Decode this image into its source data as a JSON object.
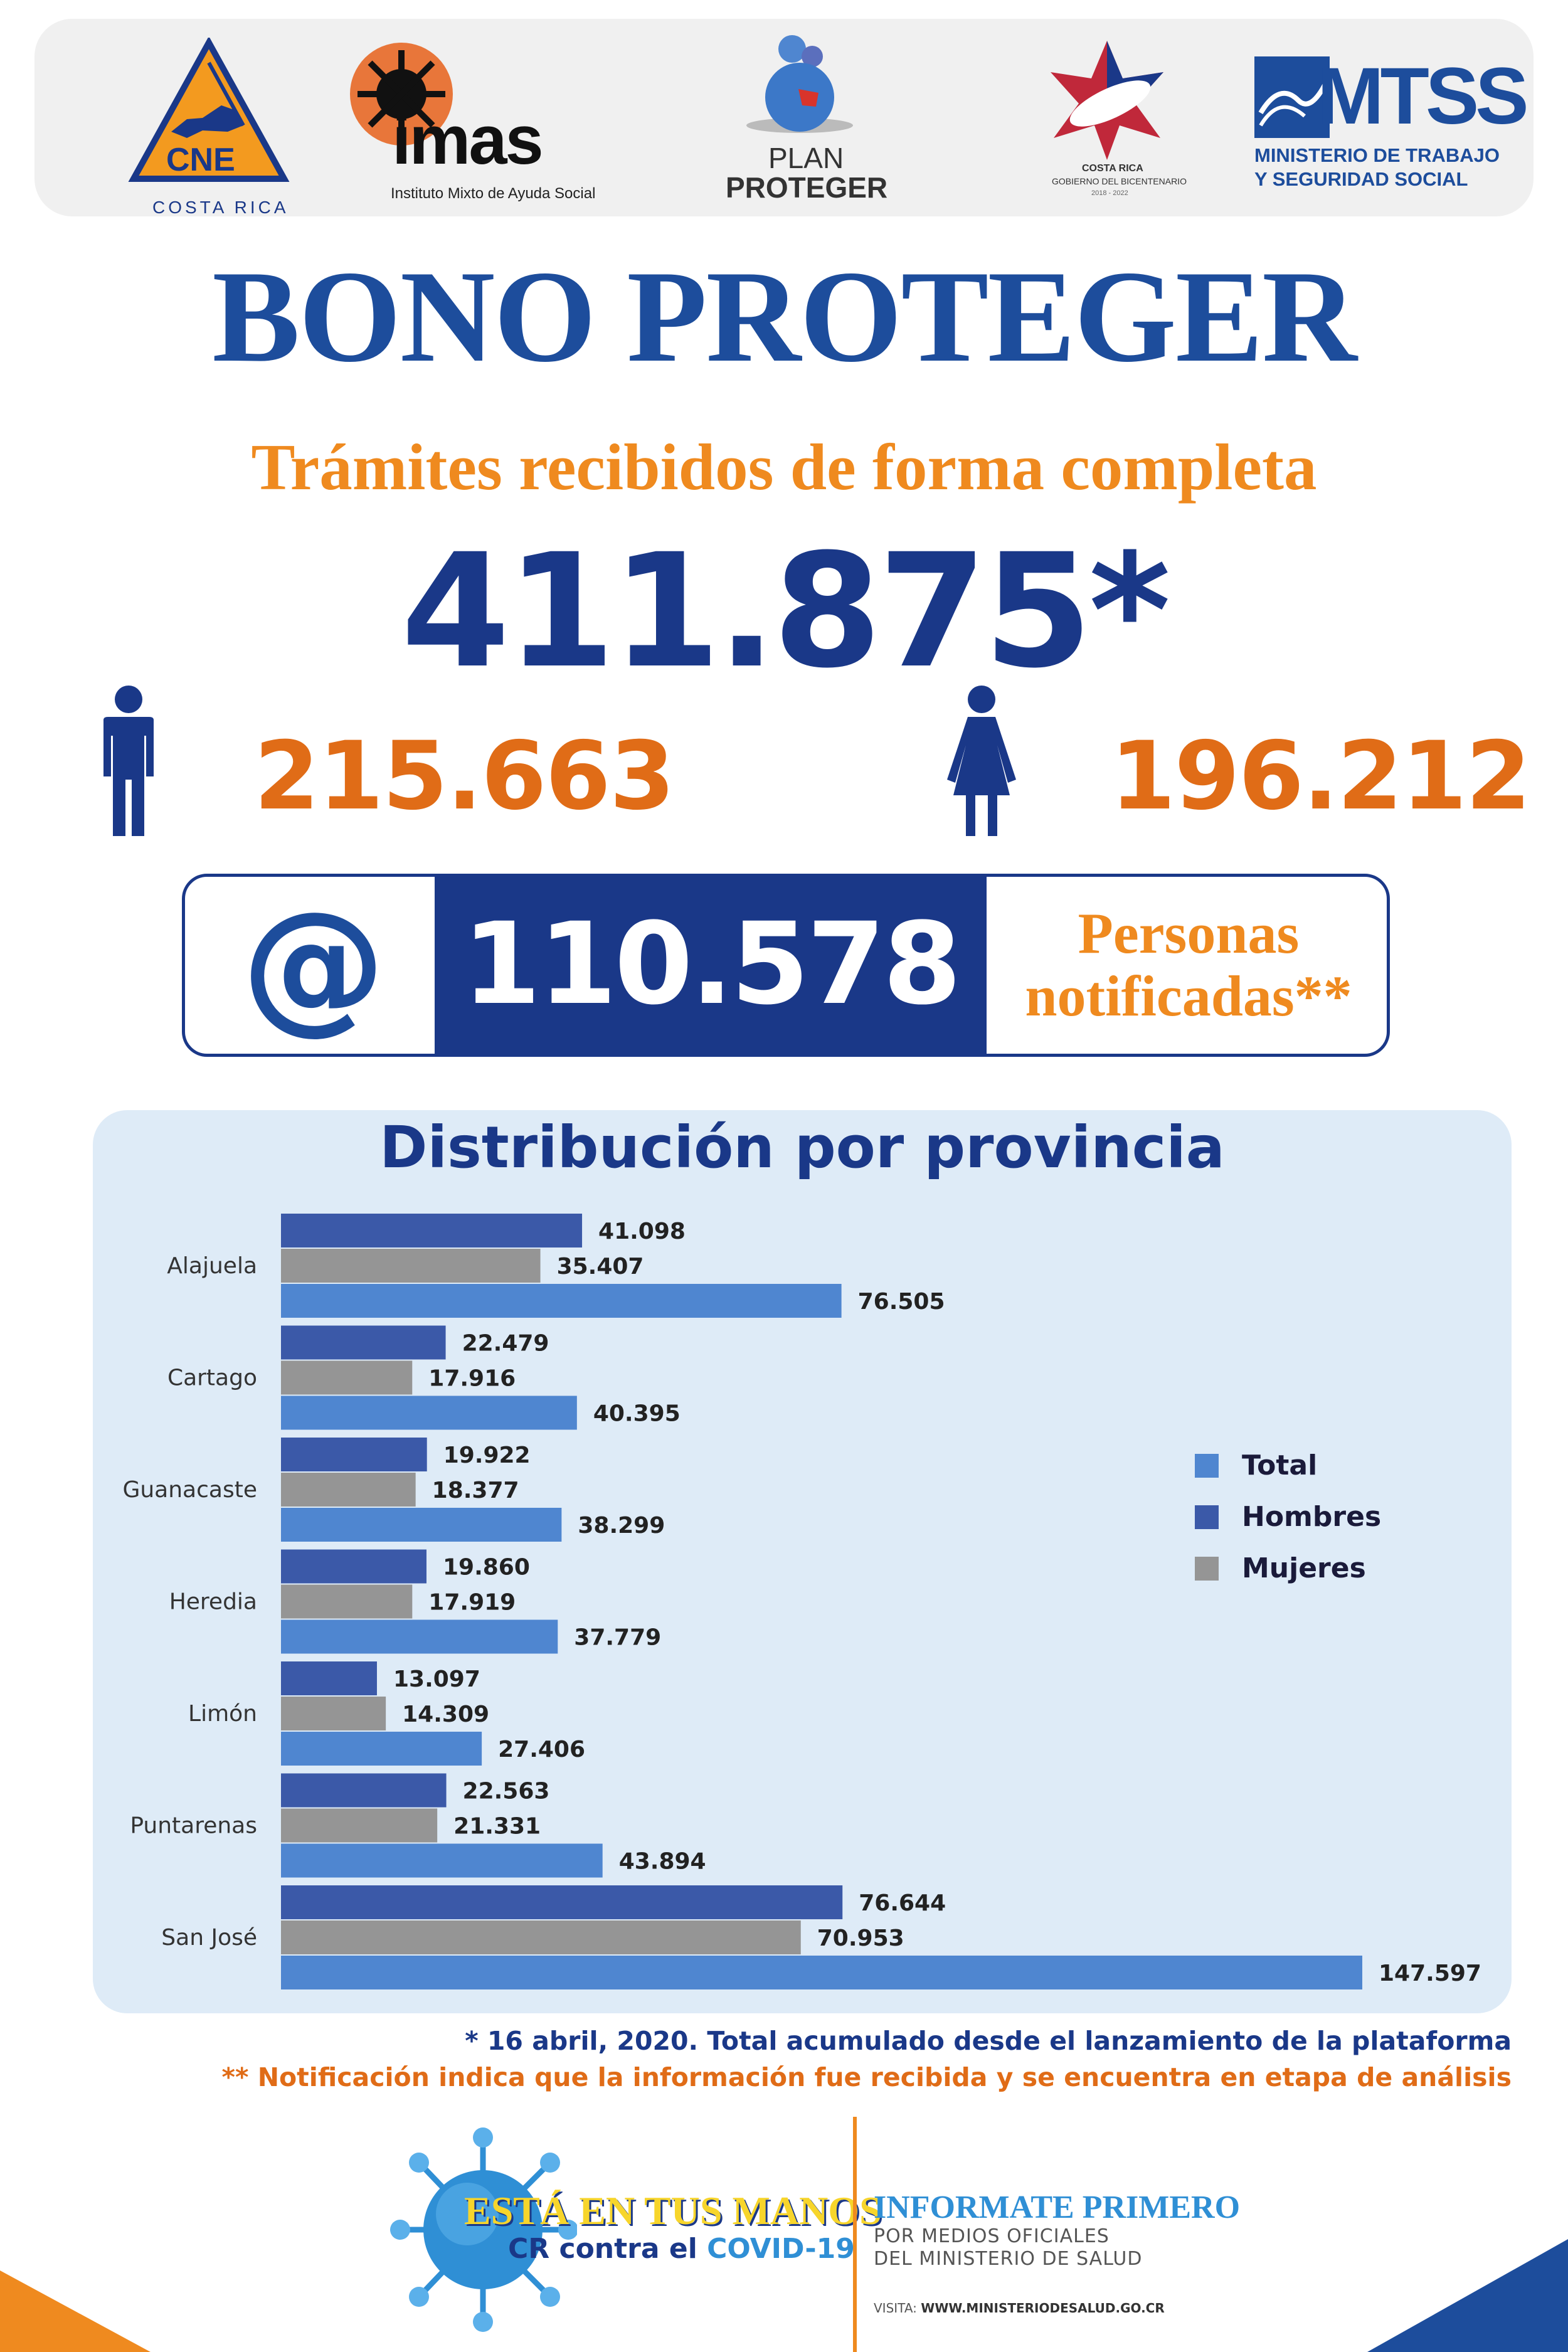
{
  "logos": {
    "cne": {
      "label": "CNE",
      "sub": "COSTA RICA"
    },
    "imas": {
      "label": "imas",
      "sub": "Instituto Mixto de Ayuda Social"
    },
    "plan": {
      "line1": "PLAN",
      "line2": "PROTEGER"
    },
    "gobierno": {
      "line1": "COSTA RICA",
      "line2": "GOBIERNO DEL BICENTENARIO",
      "line3": "2018 - 2022"
    },
    "mtss": {
      "label": "MTSS",
      "line1": "MINISTERIO DE TRABAJO",
      "line2": "Y SEGURIDAD SOCIAL"
    }
  },
  "header": {
    "title": "BONO PROTEGER",
    "subtitle": "Trámites recibidos de forma completa",
    "total": "411.875*"
  },
  "gender": {
    "men": "215.663",
    "women": "196.212"
  },
  "notifications": {
    "icon_glyph": "@",
    "count": "110.578",
    "label_line1": "Personas",
    "label_line2": "notificadas**"
  },
  "chart_data": {
    "type": "bar",
    "orientation": "horizontal",
    "title": "Distribución por provincia",
    "categories": [
      "Alajuela",
      "Cartago",
      "Guanacaste",
      "Heredia",
      "Limón",
      "Puntarenas",
      "San José"
    ],
    "series": [
      {
        "name": "Hombres",
        "color": "#3b59a8",
        "values": [
          41098,
          22479,
          19922,
          19860,
          13097,
          22563,
          76644
        ],
        "labels": [
          "41.098",
          "22.479",
          "19.922",
          "19.860",
          "13.097",
          "22.563",
          "76.644"
        ]
      },
      {
        "name": "Mujeres",
        "color": "#959595",
        "values": [
          35407,
          17916,
          18377,
          17919,
          14309,
          21331,
          70953
        ],
        "labels": [
          "35.407",
          "17.916",
          "18.377",
          "17.919",
          "14.309",
          "21.331",
          "70.953"
        ]
      },
      {
        "name": "Total",
        "color": "#4f86d0",
        "values": [
          76505,
          40395,
          38299,
          37779,
          27406,
          43894,
          147597
        ],
        "labels": [
          "76.505",
          "40.395",
          "38.299",
          "37.779",
          "27.406",
          "43.894",
          "147.597"
        ]
      }
    ],
    "legend_order": [
      "Total",
      "Hombres",
      "Mujeres"
    ],
    "legend_position": "right",
    "grid": false,
    "xlim": [
      0,
      147597
    ]
  },
  "footnotes": {
    "note1": "* 16 abril, 2020. Total acumulado desde el lanzamiento de la plataforma",
    "note2": "** Notificación indica que la información fue recibida y se encuentra en etapa de análisis"
  },
  "footer": {
    "campaign_line1": "ESTÁ EN TUS MANOS",
    "campaign_line2a": "CR contra el ",
    "campaign_line2b": "COVID-19",
    "inform_title": "INFORMATE PRIMERO",
    "inform_line1": "POR MEDIOS OFICIALES",
    "inform_line2": "DEL MINISTERIO DE SALUD",
    "visit_label": "VISITA: ",
    "visit_url": "WWW.MINISTERIODESALUD.GO.CR"
  },
  "colors": {
    "navy": "#1a3888",
    "blue_title": "#1d4d9c",
    "orange": "#ef8a1f",
    "orange_dark": "#e06c17",
    "panel_bg": "#deebf7"
  }
}
